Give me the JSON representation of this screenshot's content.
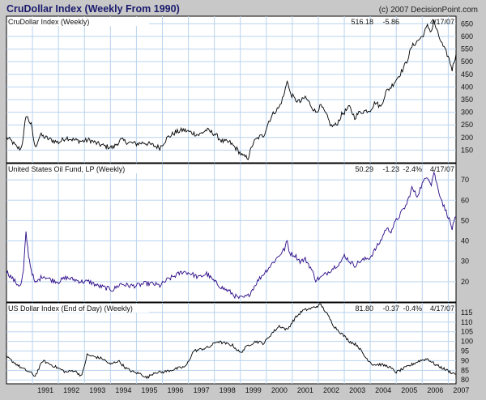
{
  "header": {
    "title": "CruDollar Index (Weekly From 1990)",
    "copyright": "(c) 2007 DecisionPoint.com"
  },
  "colors": {
    "frame_bg": "#c8c8c8",
    "plot_bg": "#ffffff",
    "grid": "#b9d3ee",
    "series_black": "#000000",
    "series_purple": "#2b0a86"
  },
  "x_axis": {
    "tick_labels": [
      "1991",
      "1992",
      "1993",
      "1994",
      "1995",
      "1996",
      "1997",
      "1998",
      "1999",
      "2000",
      "2001",
      "2002",
      "2003",
      "2004",
      "2005",
      "2006",
      "2007"
    ]
  },
  "chart_data": [
    {
      "type": "line",
      "title": "CruDollar Index (Weekly)",
      "readout": {
        "value": "516.18",
        "change": "-5.86",
        "pct": "",
        "date": "4/17/07"
      },
      "xlim": [
        1990.0,
        2007.3
      ],
      "ylim": [
        100,
        680
      ],
      "yticks": [
        150,
        200,
        250,
        300,
        350,
        400,
        450,
        500,
        550,
        600,
        650
      ],
      "grid": true,
      "line_color": "#000000",
      "series": [
        {
          "x": [
            1990.0,
            1990.2,
            1990.4,
            1990.55,
            1990.65,
            1990.75,
            1990.85,
            1990.95,
            1991.1,
            1991.3,
            1991.6,
            1992.0,
            1992.3,
            1992.6,
            1992.9,
            1993.2,
            1993.5,
            1993.8,
            1994.1,
            1994.4,
            1994.7,
            1995.0,
            1995.3,
            1995.6,
            1995.9,
            1996.2,
            1996.5,
            1996.8,
            1997.1,
            1997.4,
            1997.7,
            1998.0,
            1998.3,
            1998.6,
            1998.9,
            1999.1,
            1999.3,
            1999.5,
            1999.7,
            1999.9,
            2000.1,
            2000.3,
            2000.5,
            2000.7,
            2000.8,
            2000.9,
            2001.1,
            2001.3,
            2001.5,
            2001.7,
            2001.9,
            2002.1,
            2002.3,
            2002.5,
            2002.7,
            2002.9,
            2003.0,
            2003.2,
            2003.4,
            2003.6,
            2003.8,
            2004.0,
            2004.2,
            2004.4,
            2004.6,
            2004.8,
            2005.0,
            2005.2,
            2005.4,
            2005.6,
            2005.8,
            2006.0,
            2006.2,
            2006.35,
            2006.45,
            2006.6,
            2006.8,
            2007.0,
            2007.15,
            2007.3
          ],
          "y": [
            200,
            185,
            160,
            155,
            200,
            290,
            270,
            250,
            160,
            210,
            195,
            180,
            200,
            190,
            185,
            190,
            175,
            165,
            160,
            190,
            180,
            175,
            180,
            170,
            160,
            200,
            220,
            230,
            220,
            210,
            230,
            215,
            185,
            180,
            150,
            125,
            120,
            180,
            200,
            210,
            265,
            300,
            320,
            375,
            430,
            380,
            350,
            340,
            360,
            330,
            300,
            325,
            290,
            245,
            250,
            290,
            300,
            320,
            280,
            300,
            305,
            310,
            340,
            320,
            380,
            400,
            430,
            460,
            500,
            560,
            580,
            600,
            640,
            620,
            660,
            610,
            560,
            520,
            470,
            530
          ]
        }
      ]
    },
    {
      "type": "line",
      "title": "United States Oil Fund, LP (Weekly)",
      "readout": {
        "value": "50.29",
        "change": "-1.23",
        "pct": "-2.4%",
        "date": "4/17/07"
      },
      "xlim": [
        1990.0,
        2007.3
      ],
      "ylim": [
        10,
        78
      ],
      "yticks": [
        20,
        30,
        40,
        50,
        60,
        70
      ],
      "grid": true,
      "line_color": "#2b0a86",
      "series": [
        {
          "x": [
            1990.0,
            1990.2,
            1990.4,
            1990.55,
            1990.65,
            1990.75,
            1990.85,
            1990.95,
            1991.1,
            1991.4,
            1991.7,
            1992.0,
            1992.3,
            1992.6,
            1992.9,
            1993.2,
            1993.5,
            1993.8,
            1994.1,
            1994.4,
            1994.7,
            1995.0,
            1995.3,
            1995.6,
            1995.9,
            1996.2,
            1996.5,
            1996.8,
            1997.1,
            1997.4,
            1997.7,
            1998.0,
            1998.3,
            1998.6,
            1998.9,
            1999.1,
            1999.3,
            1999.5,
            1999.7,
            1999.9,
            2000.1,
            2000.3,
            2000.5,
            2000.7,
            2000.8,
            2000.9,
            2001.1,
            2001.3,
            2001.5,
            2001.7,
            2001.9,
            2002.1,
            2002.3,
            2002.5,
            2002.7,
            2002.9,
            2003.0,
            2003.2,
            2003.4,
            2003.6,
            2003.8,
            2004.0,
            2004.2,
            2004.4,
            2004.6,
            2004.8,
            2005.0,
            2005.2,
            2005.4,
            2005.6,
            2005.8,
            2006.0,
            2006.2,
            2006.35,
            2006.45,
            2006.6,
            2006.8,
            2007.0,
            2007.15,
            2007.3
          ],
          "y": [
            25,
            22,
            19,
            18,
            25,
            44,
            33,
            26,
            19,
            23,
            21,
            20,
            22,
            21,
            20,
            20,
            18,
            17,
            16,
            19,
            18,
            18,
            19,
            19,
            18,
            21,
            23,
            25,
            24,
            22,
            24,
            20,
            17,
            15,
            12,
            12,
            13,
            17,
            21,
            24,
            27,
            30,
            33,
            36,
            40,
            34,
            33,
            30,
            31,
            27,
            21,
            22,
            24,
            26,
            28,
            30,
            33,
            30,
            28,
            30,
            31,
            32,
            36,
            40,
            46,
            45,
            50,
            54,
            58,
            66,
            62,
            68,
            72,
            68,
            74,
            66,
            58,
            52,
            46,
            52
          ]
        }
      ]
    },
    {
      "type": "line",
      "title": "US Dollar Index (End of Day) (Weekly)",
      "readout": {
        "value": "81.80",
        "change": "-0.37",
        "pct": "-0.4%",
        "date": "4/17/07"
      },
      "xlim": [
        1990.0,
        2007.3
      ],
      "ylim": [
        78,
        120
      ],
      "yticks": [
        80,
        85,
        90,
        95,
        100,
        105,
        110,
        115
      ],
      "grid": true,
      "line_color": "#000000",
      "series": [
        {
          "x": [
            1990.0,
            1990.3,
            1990.6,
            1990.9,
            1991.1,
            1991.4,
            1991.7,
            1992.0,
            1992.3,
            1992.6,
            1992.9,
            1993.1,
            1993.4,
            1993.7,
            1994.0,
            1994.3,
            1994.6,
            1994.9,
            1995.2,
            1995.4,
            1995.7,
            1996.0,
            1996.3,
            1996.6,
            1996.9,
            1997.2,
            1997.5,
            1997.8,
            1998.1,
            1998.4,
            1998.7,
            1999.0,
            1999.3,
            1999.6,
            1999.9,
            2000.2,
            2000.5,
            2000.8,
            2001.1,
            2001.4,
            2001.7,
            2001.9,
            2002.1,
            2002.3,
            2002.6,
            2002.9,
            2003.2,
            2003.5,
            2003.8,
            2004.1,
            2004.4,
            2004.7,
            2005.0,
            2005.3,
            2005.6,
            2005.9,
            2006.2,
            2006.5,
            2006.8,
            2007.1,
            2007.3
          ],
          "y": [
            92,
            89,
            86,
            84,
            82,
            90,
            88,
            86,
            84,
            85,
            82,
            93,
            92,
            91,
            88,
            90,
            86,
            84,
            83,
            81,
            84,
            84,
            85,
            86,
            87,
            95,
            96,
            97,
            100,
            99,
            98,
            94,
            98,
            100,
            99,
            104,
            108,
            106,
            112,
            116,
            117,
            118,
            119,
            115,
            108,
            104,
            100,
            98,
            92,
            88,
            88,
            87,
            84,
            86,
            88,
            90,
            91,
            88,
            86,
            84,
            83
          ]
        }
      ]
    }
  ]
}
